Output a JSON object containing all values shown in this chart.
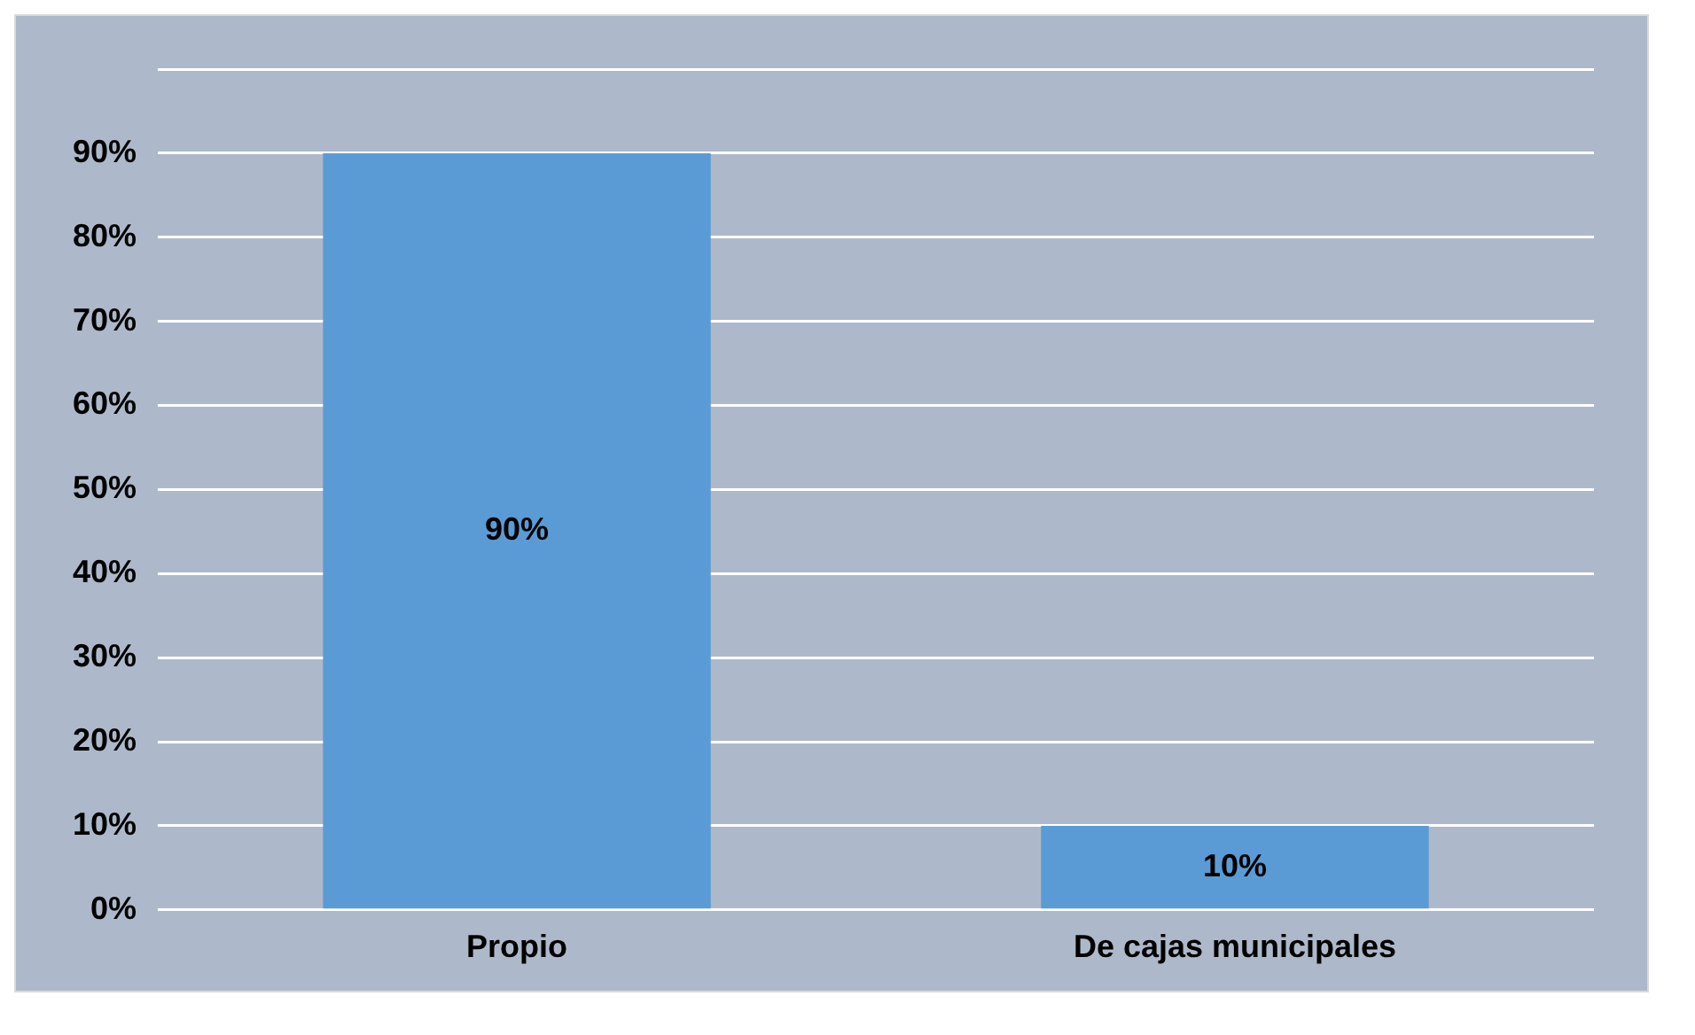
{
  "chart_data": {
    "type": "bar",
    "categories": [
      "Propio",
      "De cajas municipales"
    ],
    "values": [
      90,
      10
    ],
    "color": "#5b9bd5",
    "value_labels": [
      "90%",
      "10%"
    ],
    "ylim": [
      0,
      100
    ],
    "yticks": [
      {
        "value": 0,
        "label": "0%"
      },
      {
        "value": 10,
        "label": "10%"
      },
      {
        "value": 20,
        "label": "20%"
      },
      {
        "value": 30,
        "label": "30%"
      },
      {
        "value": 40,
        "label": "40%"
      },
      {
        "value": 50,
        "label": "50%"
      },
      {
        "value": 60,
        "label": "60%"
      },
      {
        "value": 70,
        "label": "70%"
      },
      {
        "value": 80,
        "label": "80%"
      },
      {
        "value": 90,
        "label": "90%"
      },
      {
        "value": 100,
        "label": null
      }
    ],
    "grid": "y"
  }
}
